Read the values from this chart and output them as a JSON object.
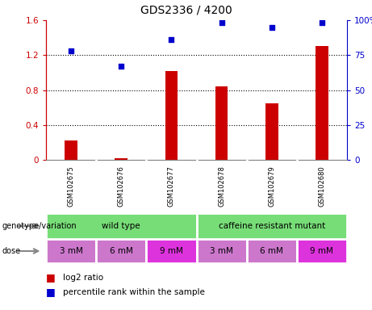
{
  "title": "GDS2336 / 4200",
  "samples": [
    "GSM102675",
    "GSM102676",
    "GSM102677",
    "GSM102678",
    "GSM102679",
    "GSM102680"
  ],
  "log2_ratio": [
    0.22,
    0.02,
    1.02,
    0.84,
    0.65,
    1.3
  ],
  "percentile_rank_pct": [
    78,
    67,
    86,
    98,
    95,
    98
  ],
  "bar_color": "#cc0000",
  "dot_color": "#0000cc",
  "ylim_left": [
    0,
    1.6
  ],
  "ylim_right": [
    0,
    100
  ],
  "yticks_left": [
    0,
    0.4,
    0.8,
    1.2,
    1.6
  ],
  "ytick_labels_left": [
    "0",
    "0.4",
    "0.8",
    "1.2",
    "1.6"
  ],
  "yticks_right": [
    0,
    25,
    50,
    75,
    100
  ],
  "ytick_labels_right": [
    "0",
    "25",
    "50",
    "75",
    "100%"
  ],
  "wt_color": "#77dd77",
  "cr_color": "#77dd77",
  "dose_color_light": "#cc77cc",
  "dose_color_dark": "#dd33dd",
  "dose_labels": [
    "3 mM",
    "6 mM",
    "9 mM",
    "3 mM",
    "6 mM",
    "9 mM"
  ],
  "dose_is_dark": [
    false,
    false,
    true,
    false,
    false,
    true
  ],
  "sample_box_color": "#cccccc",
  "bg_color": "#ffffff",
  "left_axis_color": "#cc0000",
  "right_axis_color": "#0000cc"
}
